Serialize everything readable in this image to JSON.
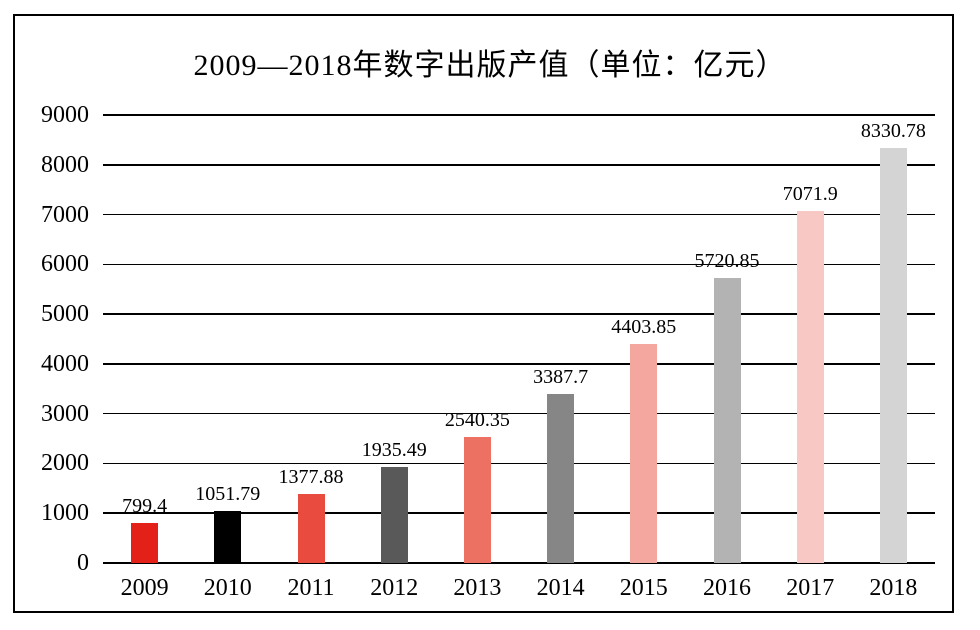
{
  "chart_data": {
    "type": "bar",
    "title": "2009—2018年数字出版产值（单位：亿元）",
    "categories": [
      "2009",
      "2010",
      "2011",
      "2012",
      "2013",
      "2014",
      "2015",
      "2016",
      "2017",
      "2018"
    ],
    "values": [
      799.4,
      1051.79,
      1377.88,
      1935.49,
      2540.35,
      3387.7,
      4403.85,
      5720.85,
      7071.9,
      8330.78
    ],
    "value_labels": [
      "799.4",
      "1051.79",
      "1377.88",
      "1935.49",
      "2540.35",
      "3387.7",
      "4403.85",
      "5720.85",
      "7071.9",
      "8330.78"
    ],
    "bar_colors": [
      "#e32119",
      "#000000",
      "#ea4b3f",
      "#595959",
      "#ed7163",
      "#868686",
      "#f3a79e",
      "#b3b3b3",
      "#f8c9c4",
      "#d4d4d4"
    ],
    "xlabel": "",
    "ylabel": "",
    "ylim": [
      0,
      9000
    ],
    "ytick_step": 1000,
    "ytick_labels": [
      "0",
      "1000",
      "2000",
      "3000",
      "4000",
      "5000",
      "6000",
      "7000",
      "8000",
      "9000"
    ],
    "grid": "horizontal",
    "legend": "none",
    "axis_color": "#000000",
    "background_color": "#ffffff"
  }
}
